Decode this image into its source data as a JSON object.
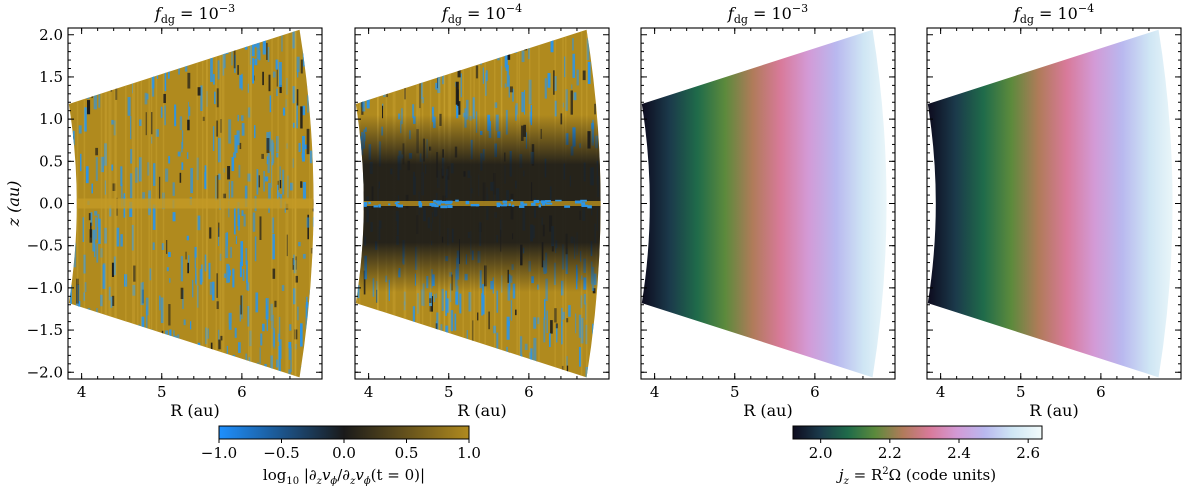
{
  "chart_data": [
    {
      "type": "heatmap",
      "title": "f_dg = 10^-3",
      "title_base": "f",
      "title_sub": "dg",
      "title_eq": " = 10",
      "title_exp": "−3",
      "xlabel": "R (au)",
      "ylabel": "z (au)",
      "xlim": [
        3.83,
        7.0
      ],
      "ylim": [
        -2.08,
        2.08
      ],
      "xticks": [
        "4",
        "5",
        "6"
      ],
      "xtick_values": [
        4,
        5,
        6
      ],
      "yticks": [
        "−2.0",
        "−1.5",
        "−1.0",
        "−0.5",
        "0.0",
        "0.5",
        "1.0",
        "1.5",
        "2.0"
      ],
      "ytick_values": [
        -2.0,
        -1.5,
        -1.0,
        -0.5,
        0.0,
        0.5,
        1.0,
        1.5,
        2.0
      ],
      "field": "log10 |dz v_phi / dz v_phi(t=0)|",
      "colormap": "diverging",
      "pattern": "turbulent throughout"
    },
    {
      "type": "heatmap",
      "title": "f_dg = 10^-4",
      "title_base": "f",
      "title_sub": "dg",
      "title_eq": " = 10",
      "title_exp": "−4",
      "xlabel": "R (au)",
      "xlim": [
        3.83,
        7.0
      ],
      "ylim": [
        -2.08,
        2.08
      ],
      "xticks": [
        "4",
        "5",
        "6"
      ],
      "xtick_values": [
        4,
        5,
        6
      ],
      "field": "log10 |dz v_phi / dz v_phi(t=0)|",
      "colormap": "diverging",
      "pattern": "quiet midplane band with thin active midplane layer"
    },
    {
      "type": "heatmap",
      "title": "f_dg = 10^-3",
      "title_base": "f",
      "title_sub": "dg",
      "title_eq": " = 10",
      "title_exp": "−3",
      "xlabel": "R (au)",
      "xlim": [
        3.83,
        7.0
      ],
      "ylim": [
        -2.08,
        2.08
      ],
      "xticks": [
        "4",
        "5",
        "6"
      ],
      "xtick_values": [
        4,
        5,
        6
      ],
      "field": "j_z = R^2 Omega",
      "colormap": "cubehelix"
    },
    {
      "type": "heatmap",
      "title": "f_dg = 10^-4",
      "title_base": "f",
      "title_sub": "dg",
      "title_eq": " = 10",
      "title_exp": "−4",
      "xlabel": "R (au)",
      "xlim": [
        3.83,
        7.0
      ],
      "ylim": [
        -2.08,
        2.08
      ],
      "xticks": [
        "4",
        "5",
        "6"
      ],
      "xtick_values": [
        4,
        5,
        6
      ],
      "field": "j_z = R^2 Omega",
      "colormap": "cubehelix"
    }
  ],
  "colorbars": [
    {
      "label": "log10 |∂z vϕ/∂z vϕ(t = 0)|",
      "label_parts": [
        "log",
        "10",
        " |∂",
        "z",
        "v",
        "ϕ",
        "/∂",
        "z",
        "v",
        "ϕ",
        "(t = 0)|"
      ],
      "range": [
        -1.0,
        1.0
      ],
      "ticks": [
        "−1.0",
        "−0.5",
        "0.0",
        "0.5",
        "1.0"
      ],
      "tick_values": [
        -1.0,
        -0.5,
        0.0,
        0.5,
        1.0
      ],
      "colors": [
        "#1e90ff",
        "#1a1a1a",
        "#b08a1e"
      ]
    },
    {
      "label": "jz = R2Ω (code units)",
      "label_parts": [
        "j",
        "z",
        " = R",
        "2",
        "Ω (code units)"
      ],
      "range": [
        1.92,
        2.64
      ],
      "ticks": [
        "2.0",
        "2.2",
        "2.4",
        "2.6"
      ],
      "tick_values": [
        2.0,
        2.2,
        2.4,
        2.6
      ],
      "colors": [
        "#0d0b1e",
        "#1b3a4b",
        "#1f6b4a",
        "#5c8a3c",
        "#b07b5a",
        "#d87a9a",
        "#d39ad6",
        "#b9b8ef",
        "#cfe6f4",
        "#f2fbfb"
      ]
    }
  ]
}
